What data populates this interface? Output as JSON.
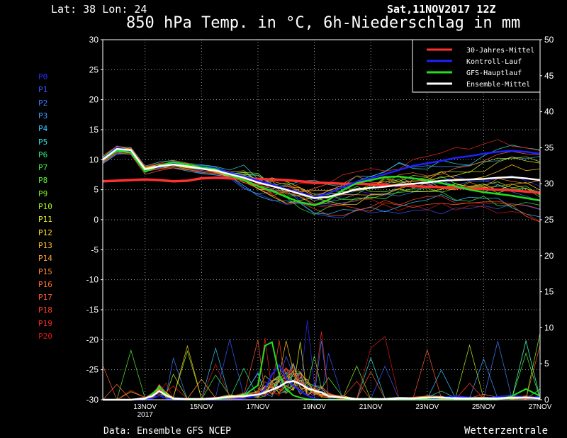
{
  "header": {
    "location": "Lat: 38 Lon: 24",
    "run": "Sat,11NOV2017 12Z",
    "title": "850 hPa Temp. in °C, 6h-Niederschlag in mm"
  },
  "footer": {
    "source": "Data: Ensemble GFS NCEP",
    "brand": "Wetterzentrale"
  },
  "members": [
    {
      "label": "P0",
      "color": "#2a2aff"
    },
    {
      "label": "P1",
      "color": "#3b55ff"
    },
    {
      "label": "P2",
      "color": "#3f7aff"
    },
    {
      "label": "P3",
      "color": "#3fa0ff"
    },
    {
      "label": "P4",
      "color": "#33c8ff"
    },
    {
      "label": "P5",
      "color": "#2fe0d8"
    },
    {
      "label": "P6",
      "color": "#33e880"
    },
    {
      "label": "P7",
      "color": "#40ee40"
    },
    {
      "label": "P8",
      "color": "#58f030"
    },
    {
      "label": "P9",
      "color": "#80f020"
    },
    {
      "label": "P10",
      "color": "#b0f020"
    },
    {
      "label": "P11",
      "color": "#e8f020"
    },
    {
      "label": "P12",
      "color": "#ffe020"
    },
    {
      "label": "P13",
      "color": "#ffc020"
    },
    {
      "label": "P14",
      "color": "#ffa030"
    },
    {
      "label": "P15",
      "color": "#ff8830"
    },
    {
      "label": "P16",
      "color": "#ff7030"
    },
    {
      "label": "P17",
      "color": "#ff5830"
    },
    {
      "label": "P18",
      "color": "#ff4028"
    },
    {
      "label": "P19",
      "color": "#f02820"
    },
    {
      "label": "P20",
      "color": "#d01818"
    }
  ],
  "chart_data": {
    "type": "line",
    "y_left": {
      "range": [
        -30,
        30
      ],
      "ticks": [
        -30,
        -25,
        -20,
        -15,
        -10,
        -5,
        0,
        5,
        10,
        15,
        20,
        25,
        30
      ],
      "unit": "°C"
    },
    "y_right": {
      "range": [
        0,
        50
      ],
      "ticks": [
        0,
        5,
        10,
        15,
        20,
        25,
        30,
        35,
        40,
        45,
        50
      ],
      "unit": "mm"
    },
    "x_range_days": [
      11.5,
      27
    ],
    "x_ticks": [
      {
        "label": "13NOV",
        "sub": "2017",
        "day": 13
      },
      {
        "label": "15NOV",
        "sub": "",
        "day": 15
      },
      {
        "label": "17NOV",
        "sub": "",
        "day": 17
      },
      {
        "label": "19NOV",
        "sub": "",
        "day": 19
      },
      {
        "label": "21NOV",
        "sub": "",
        "day": 21
      },
      {
        "label": "23NOV",
        "sub": "",
        "day": 23
      },
      {
        "label": "25NOV",
        "sub": "",
        "day": 25
      },
      {
        "label": "27NOV",
        "sub": "",
        "day": 27
      }
    ],
    "grid": true,
    "legend": {
      "placement": "top-right",
      "entries": [
        {
          "name": "30-Jahres-Mittel",
          "color": "#ff3030"
        },
        {
          "name": "Kontroll-Lauf",
          "color": "#2020ff"
        },
        {
          "name": "GFS-Hauptlauf",
          "color": "#20e020"
        },
        {
          "name": "Ensemble-Mittel",
          "color": "#ffffff"
        }
      ]
    },
    "temperature": {
      "x": [
        11.5,
        12,
        12.5,
        13,
        13.5,
        14,
        14.5,
        15,
        15.5,
        16,
        16.5,
        17,
        17.5,
        18,
        18.5,
        19,
        19.5,
        20,
        20.5,
        21,
        21.5,
        22,
        22.5,
        23,
        23.5,
        24,
        24.5,
        25,
        25.5,
        26,
        26.5,
        27
      ],
      "climate_mean": [
        6.4,
        6.5,
        6.6,
        6.7,
        6.6,
        6.4,
        6.5,
        6.9,
        7.0,
        6.9,
        6.8,
        6.8,
        6.7,
        6.6,
        6.4,
        6.2,
        6.1,
        6.0,
        6.0,
        5.9,
        5.8,
        5.7,
        5.6,
        5.5,
        5.4,
        5.3,
        5.2,
        5.1,
        5.0,
        4.9,
        4.7,
        4.5
      ],
      "ensemble_mean": [
        10.0,
        11.8,
        11.6,
        8.4,
        8.9,
        9.2,
        8.9,
        8.5,
        8.2,
        7.6,
        7.0,
        6.2,
        5.6,
        5.0,
        4.3,
        3.6,
        3.8,
        4.4,
        5.1,
        5.3,
        5.5,
        5.8,
        6.0,
        6.2,
        6.5,
        6.6,
        6.7,
        6.8,
        7.0,
        7.1,
        6.9,
        6.6
      ],
      "control_run": [
        10.0,
        12.0,
        11.5,
        8.2,
        8.8,
        9.4,
        9.0,
        8.8,
        8.5,
        7.8,
        7.2,
        6.5,
        5.9,
        5.1,
        4.5,
        3.8,
        4.4,
        5.4,
        6.3,
        6.9,
        7.6,
        8.3,
        9.0,
        9.4,
        9.8,
        10.3,
        10.6,
        11.0,
        11.3,
        11.5,
        11.3,
        11.0
      ],
      "gfs_main_run": [
        10.0,
        11.5,
        11.2,
        8.0,
        9.0,
        9.6,
        9.2,
        8.7,
        8.4,
        7.4,
        6.6,
        5.6,
        4.8,
        3.8,
        2.9,
        2.4,
        3.3,
        4.9,
        6.1,
        6.6,
        7.1,
        7.2,
        6.9,
        6.6,
        6.1,
        5.6,
        5.0,
        4.6,
        4.3,
        4.0,
        3.6,
        3.2
      ]
    },
    "precipitation": {
      "x": [
        11.5,
        12,
        12.5,
        13,
        13.25,
        13.5,
        13.75,
        14,
        14.5,
        15,
        15.5,
        16,
        16.5,
        17,
        17.25,
        17.5,
        17.75,
        18,
        18.25,
        18.5,
        18.75,
        19,
        19.25,
        19.5,
        20,
        20.5,
        21,
        21.5,
        22,
        22.5,
        23,
        23.5,
        24,
        24.5,
        25,
        25.5,
        26,
        26.5,
        27
      ],
      "ensemble_mean": [
        0,
        0,
        0,
        0.2,
        0.5,
        1.2,
        0.6,
        0.2,
        0.1,
        0.1,
        0.2,
        0.4,
        0.5,
        0.7,
        1.0,
        1.4,
        1.8,
        2.4,
        2.6,
        2.2,
        1.6,
        1.3,
        1.0,
        0.5,
        0.3,
        0.1,
        0.1,
        0.1,
        0.2,
        0.2,
        0.3,
        0.3,
        0.2,
        0.2,
        0.2,
        0.2,
        0.3,
        0.3,
        0.2
      ],
      "control_run": [
        0,
        0,
        0,
        0,
        0.2,
        0.6,
        0.2,
        0,
        0,
        0,
        0,
        0,
        0.2,
        0.6,
        1.5,
        3.5,
        4.8,
        3.0,
        2.0,
        1.2,
        0.6,
        0.2,
        0,
        0,
        0,
        0,
        0,
        0,
        0,
        0,
        0,
        0.3,
        0.5,
        0.3,
        0.2,
        0.4,
        0.6,
        0.3,
        0.4
      ],
      "gfs_main_run": [
        0,
        0,
        0,
        0.1,
        0.8,
        1.8,
        0.7,
        0.1,
        0,
        0,
        0.1,
        0.3,
        0.6,
        2.0,
        7.5,
        8.0,
        3.5,
        1.5,
        0.6,
        0.3,
        0.1,
        0,
        0,
        0,
        0,
        0,
        0,
        0,
        0,
        0,
        0,
        0,
        0,
        0,
        0,
        0,
        0.5,
        1.5,
        0.5
      ]
    }
  }
}
